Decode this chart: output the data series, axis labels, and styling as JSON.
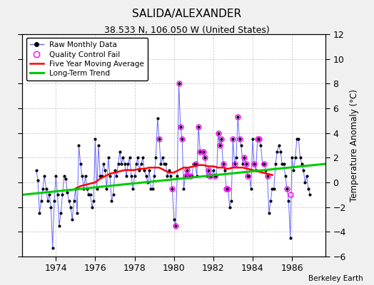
{
  "title": "SALIDA/ALEXANDER",
  "subtitle": "38.533 N, 106.050 W (United States)",
  "ylabel_right": "Temperature Anomaly (°C)",
  "credit": "Berkeley Earth",
  "xlim": [
    1972.3,
    1987.7
  ],
  "ylim": [
    -6,
    12
  ],
  "yticks": [
    -6,
    -4,
    -2,
    0,
    2,
    4,
    6,
    8,
    10,
    12
  ],
  "xticks": [
    1974,
    1976,
    1978,
    1980,
    1982,
    1984,
    1986
  ],
  "raw_color": "#6666ff",
  "marker_color": "black",
  "qc_color": "magenta",
  "ma_color": "red",
  "trend_color": "#00cc00",
  "bg_color": "#f0f0f0",
  "plot_bg": "#ffffff",
  "raw_data_x": [
    1973.0,
    1973.083,
    1973.167,
    1973.25,
    1973.333,
    1973.417,
    1973.5,
    1973.583,
    1973.667,
    1973.75,
    1973.833,
    1973.917,
    1974.0,
    1974.083,
    1974.167,
    1974.25,
    1974.333,
    1974.417,
    1974.5,
    1974.583,
    1974.667,
    1974.75,
    1974.833,
    1974.917,
    1975.0,
    1975.083,
    1975.167,
    1975.25,
    1975.333,
    1975.417,
    1975.5,
    1975.583,
    1975.667,
    1975.75,
    1975.833,
    1975.917,
    1976.0,
    1976.083,
    1976.167,
    1976.25,
    1976.333,
    1976.417,
    1976.5,
    1976.583,
    1976.667,
    1976.75,
    1976.833,
    1976.917,
    1977.0,
    1977.083,
    1977.167,
    1977.25,
    1977.333,
    1977.417,
    1977.5,
    1977.583,
    1977.667,
    1977.75,
    1977.833,
    1977.917,
    1978.0,
    1978.083,
    1978.167,
    1978.25,
    1978.333,
    1978.417,
    1978.5,
    1978.583,
    1978.667,
    1978.75,
    1978.833,
    1978.917,
    1979.0,
    1979.083,
    1979.167,
    1979.25,
    1979.333,
    1979.417,
    1979.5,
    1979.583,
    1979.667,
    1979.75,
    1979.833,
    1979.917,
    1980.0,
    1980.083,
    1980.167,
    1980.25,
    1980.333,
    1980.417,
    1980.5,
    1980.583,
    1980.667,
    1980.75,
    1980.833,
    1980.917,
    1981.0,
    1981.083,
    1981.167,
    1981.25,
    1981.333,
    1981.417,
    1981.5,
    1981.583,
    1981.667,
    1981.75,
    1981.833,
    1981.917,
    1982.0,
    1982.083,
    1982.167,
    1982.25,
    1982.333,
    1982.417,
    1982.5,
    1982.583,
    1982.667,
    1982.75,
    1982.833,
    1982.917,
    1983.0,
    1983.083,
    1983.167,
    1983.25,
    1983.333,
    1983.417,
    1983.5,
    1983.583,
    1983.667,
    1983.75,
    1983.833,
    1983.917,
    1984.0,
    1984.083,
    1984.167,
    1984.25,
    1984.333,
    1984.417,
    1984.5,
    1984.583,
    1984.667,
    1984.75,
    1984.833,
    1984.917,
    1985.0,
    1985.083,
    1985.167,
    1985.25,
    1985.333,
    1985.417,
    1985.5,
    1985.583,
    1985.667,
    1985.75,
    1985.833,
    1985.917,
    1986.0,
    1986.083,
    1986.167,
    1986.25,
    1986.333,
    1986.417,
    1986.5,
    1986.583,
    1986.667,
    1986.75,
    1986.833,
    1986.917
  ],
  "raw_data_y": [
    1.0,
    0.2,
    -2.5,
    -1.5,
    -0.5,
    0.5,
    -0.5,
    -1.5,
    -1.0,
    -2.0,
    -5.3,
    -1.5,
    0.5,
    -1.0,
    -3.5,
    -2.5,
    -1.0,
    0.5,
    0.3,
    -0.8,
    -1.5,
    -2.0,
    -3.0,
    -1.5,
    -0.5,
    -2.5,
    3.0,
    1.5,
    0.5,
    -0.5,
    0.5,
    -0.5,
    -1.0,
    -1.0,
    -2.0,
    -1.5,
    3.5,
    -0.5,
    3.0,
    0.5,
    0.5,
    1.5,
    1.0,
    -0.5,
    2.0,
    0.5,
    -1.5,
    -1.0,
    1.0,
    0.5,
    1.5,
    2.5,
    1.5,
    2.0,
    1.5,
    0.5,
    1.5,
    2.0,
    0.5,
    -0.5,
    0.5,
    1.5,
    2.0,
    1.0,
    1.5,
    2.0,
    1.0,
    0.5,
    0.0,
    1.0,
    -0.5,
    -0.5,
    0.5,
    2.0,
    5.2,
    3.5,
    1.5,
    2.0,
    1.5,
    1.5,
    0.5,
    1.0,
    0.5,
    -0.5,
    -3.0,
    -3.5,
    0.5,
    8.0,
    4.5,
    3.5,
    -0.5,
    0.5,
    1.0,
    0.5,
    0.5,
    0.5,
    1.5,
    1.5,
    0.5,
    4.5,
    2.5,
    2.5,
    2.5,
    2.0,
    0.5,
    1.0,
    0.5,
    0.5,
    1.0,
    0.5,
    0.5,
    4.0,
    3.0,
    3.5,
    1.5,
    1.0,
    -0.5,
    -0.5,
    -2.0,
    -1.5,
    3.5,
    1.5,
    2.0,
    5.3,
    3.5,
    3.0,
    1.5,
    2.0,
    1.5,
    0.5,
    0.5,
    -0.5,
    3.5,
    1.5,
    1.0,
    3.5,
    3.5,
    3.0,
    1.5,
    1.5,
    1.0,
    0.5,
    -2.5,
    -1.5,
    -0.5,
    -0.5,
    1.5,
    2.5,
    3.0,
    2.5,
    1.5,
    1.5,
    0.5,
    -0.5,
    -1.5,
    -4.5,
    2.0,
    1.0,
    2.0,
    3.5,
    3.5,
    2.0,
    1.5,
    1.0,
    0.0,
    0.5,
    -0.5,
    -1.0
  ],
  "qc_fail_x": [
    1979.25,
    1979.917,
    1980.083,
    1980.25,
    1980.333,
    1980.417,
    1980.583,
    1980.667,
    1980.75,
    1980.833,
    1981.083,
    1981.25,
    1981.333,
    1981.5,
    1981.583,
    1981.75,
    1981.833,
    1982.083,
    1982.25,
    1982.333,
    1982.417,
    1982.5,
    1982.667,
    1982.75,
    1983.0,
    1983.083,
    1983.25,
    1983.333,
    1983.583,
    1983.667,
    1983.75,
    1984.083,
    1984.25,
    1984.333,
    1984.583,
    1984.75,
    1985.75,
    1985.917
  ],
  "qc_fail_y": [
    3.5,
    -0.5,
    -3.5,
    8.0,
    4.5,
    3.5,
    0.5,
    1.0,
    0.5,
    0.5,
    1.5,
    4.5,
    2.5,
    2.5,
    2.0,
    1.0,
    0.5,
    0.5,
    4.0,
    3.0,
    3.5,
    1.5,
    -0.5,
    -0.5,
    3.5,
    1.5,
    5.3,
    3.5,
    2.0,
    1.5,
    0.5,
    1.5,
    3.5,
    3.5,
    1.5,
    0.5,
    -0.5,
    -1.0
  ],
  "moving_avg_x": [
    1975.0,
    1975.25,
    1975.5,
    1975.75,
    1976.0,
    1976.25,
    1976.5,
    1976.75,
    1977.0,
    1977.25,
    1977.5,
    1977.75,
    1978.0,
    1978.25,
    1978.5,
    1978.75,
    1979.0,
    1979.25,
    1979.5,
    1979.75,
    1980.0,
    1980.25,
    1980.5,
    1980.75,
    1981.0,
    1981.25,
    1981.5,
    1981.75,
    1982.0,
    1982.25,
    1982.5,
    1982.75,
    1983.0,
    1983.25,
    1983.5,
    1983.75,
    1984.0,
    1984.25,
    1984.5,
    1984.75,
    1985.0
  ],
  "moving_avg_y": [
    -0.5,
    -0.3,
    -0.2,
    -0.1,
    0.0,
    0.3,
    0.5,
    0.7,
    0.8,
    0.9,
    1.0,
    1.0,
    1.0,
    1.1,
    1.1,
    1.2,
    1.2,
    1.2,
    1.0,
    0.8,
    0.8,
    1.0,
    1.2,
    1.2,
    1.3,
    1.4,
    1.4,
    1.3,
    1.3,
    1.2,
    1.2,
    1.1,
    1.2,
    1.2,
    1.2,
    1.1,
    1.0,
    0.9,
    0.8,
    0.7,
    0.6
  ],
  "trend_x": [
    1972.3,
    1987.7
  ],
  "trend_y": [
    -1.0,
    1.5
  ]
}
